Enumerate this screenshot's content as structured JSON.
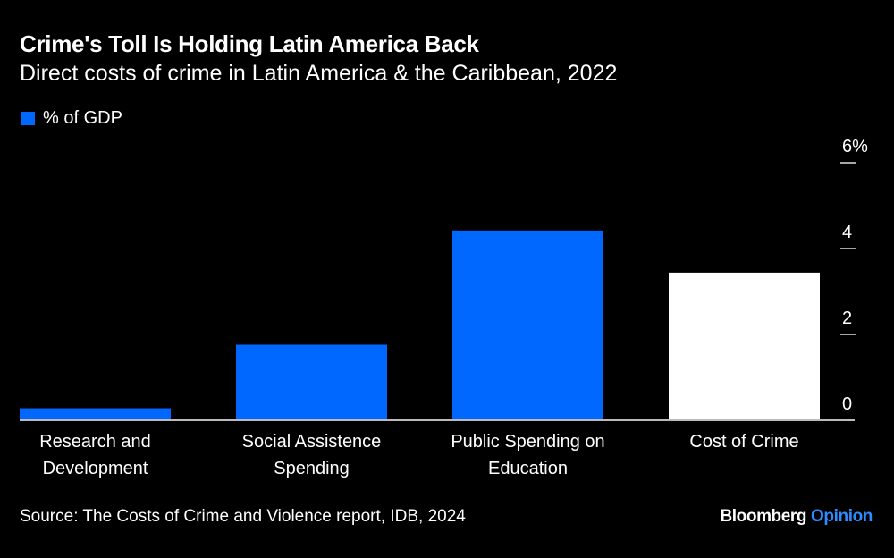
{
  "title": "Crime's Toll Is Holding Latin America Back",
  "subtitle": "Direct costs of crime in Latin America & the Caribbean, 2022",
  "source": "Source: The Costs of Crime and Violence report, IDB, 2024",
  "logo": {
    "brand": "Bloomberg",
    "section": "Opinion"
  },
  "chart_data": {
    "type": "bar",
    "categories": [
      [
        "Research and",
        "Development"
      ],
      [
        "Social Assistence",
        "Spending"
      ],
      [
        "Public Spending on",
        "Education"
      ],
      [
        "Cost of Crime"
      ]
    ],
    "series": [
      {
        "name": "% of GDP",
        "values": [
          0.28,
          1.76,
          4.42,
          3.44
        ]
      }
    ],
    "bar_colors": [
      "#0068ff",
      "#0068ff",
      "#0068ff",
      "#ffffff"
    ],
    "ylim": [
      0,
      6
    ],
    "yticks": [
      0,
      2,
      4,
      6
    ],
    "ytick_labels": [
      "0",
      "2",
      "4",
      "6%"
    ],
    "y_axis_position": "right",
    "grid": false,
    "legend_placement": "top-left"
  }
}
